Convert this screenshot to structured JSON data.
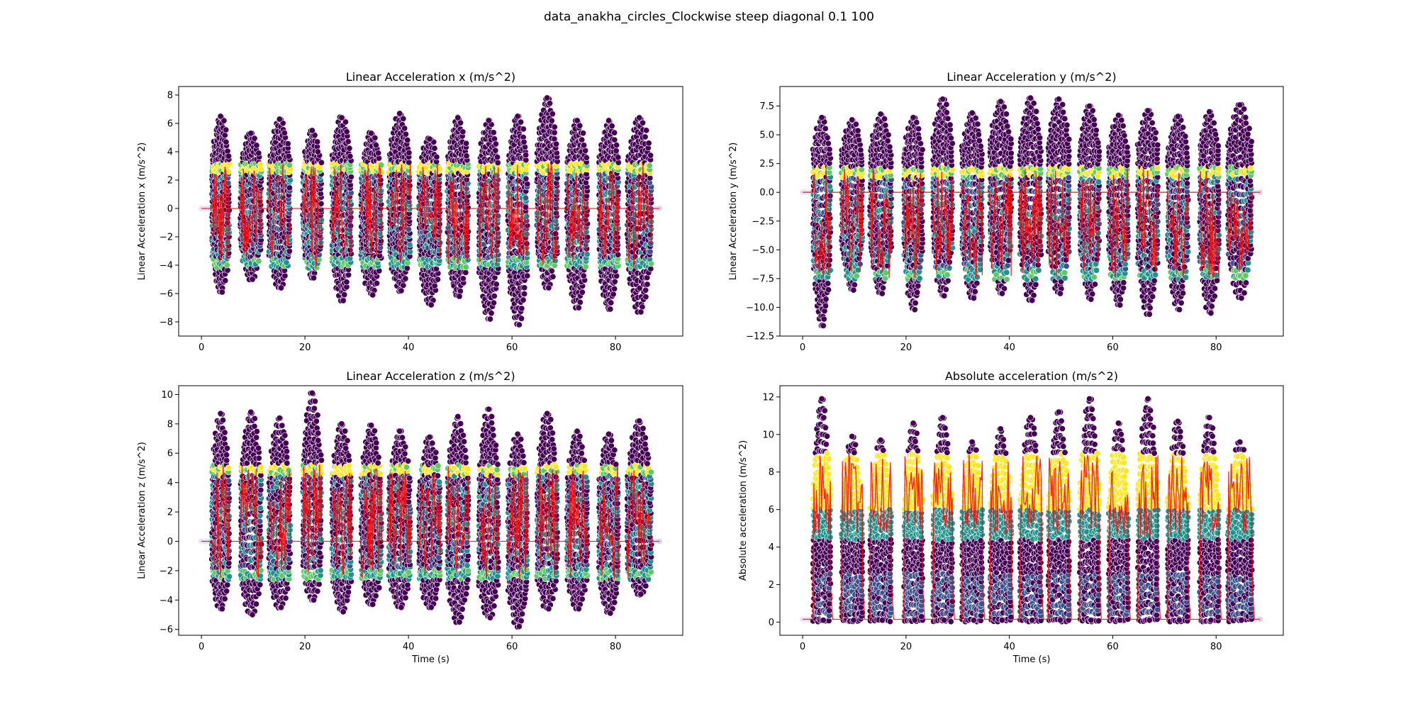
{
  "figure": {
    "title": "data_anakha_circles_Clockwise steep diagonal 0.1 100"
  },
  "colors": {
    "low": "#440154",
    "mid_low": "#3b528b",
    "mid": "#21918c",
    "mid_high": "#5ec962",
    "high": "#fde725",
    "line": "#ff0000",
    "point_edge": "#ffffff"
  },
  "chart_data": [
    {
      "type": "scatter",
      "title": "Linear Acceleration x (m/s^2)",
      "xlabel": "Time (s)",
      "ylabel": "Linear Acceleration x (m/s^2)",
      "xlim": [
        -4.4,
        93
      ],
      "ylim": [
        -9,
        8.6
      ],
      "xticks": [
        0,
        20,
        40,
        60,
        80
      ],
      "yticks": [
        -8,
        -6,
        -4,
        -2,
        0,
        2,
        4,
        6,
        8
      ],
      "ytick_labels": [
        "−8",
        "−6",
        "−4",
        "−2",
        "0",
        "2",
        "4",
        "6",
        "8"
      ],
      "bursts": [
        {
          "t": [
            2.0,
            5.4
          ],
          "min": -5.9,
          "max": 6.5
        },
        {
          "t": [
            7.5,
            11.6
          ],
          "min": -5.0,
          "max": 5.3
        },
        {
          "t": [
            13.0,
            17.2
          ],
          "min": -5.6,
          "max": 6.3
        },
        {
          "t": [
            19.6,
            23.2
          ],
          "min": -4.9,
          "max": 5.5
        },
        {
          "t": [
            25.2,
            29.0
          ],
          "min": -6.5,
          "max": 6.4
        },
        {
          "t": [
            30.8,
            34.8
          ],
          "min": -6.1,
          "max": 5.3
        },
        {
          "t": [
            36.2,
            40.4
          ],
          "min": -5.8,
          "max": 6.7
        },
        {
          "t": [
            42.0,
            46.2
          ],
          "min": -6.8,
          "max": 4.9
        },
        {
          "t": [
            47.5,
            51.6
          ],
          "min": -6.2,
          "max": 6.4
        },
        {
          "t": [
            53.6,
            57.4
          ],
          "min": -7.8,
          "max": 6.2
        },
        {
          "t": [
            59.2,
            63.0
          ],
          "min": -8.2,
          "max": 6.5
        },
        {
          "t": [
            64.8,
            68.8
          ],
          "min": -5.6,
          "max": 7.8
        },
        {
          "t": [
            70.6,
            74.6
          ],
          "min": -7.0,
          "max": 6.2
        },
        {
          "t": [
            76.8,
            80.6
          ],
          "min": -7.1,
          "max": 6.2
        },
        {
          "t": [
            82.2,
            87.0
          ],
          "min": -7.3,
          "max": 6.4
        }
      ],
      "band": {
        "lo": -4.2,
        "hi": 3.2
      },
      "baseline": 0.0,
      "t_start": 0.0,
      "t_end": 88.5
    },
    {
      "type": "scatter",
      "title": "Linear Acceleration y (m/s^2)",
      "xlabel": "Time (s)",
      "ylabel": "Linear Acceleration y (m/s^2)",
      "xlim": [
        -4.4,
        93
      ],
      "ylim": [
        -12.5,
        9.2
      ],
      "xticks": [
        0,
        20,
        40,
        60,
        80
      ],
      "yticks": [
        -12.5,
        -10.0,
        -7.5,
        -5.0,
        -2.5,
        0.0,
        2.5,
        5.0,
        7.5
      ],
      "ytick_labels": [
        "−12.5",
        "−10.0",
        "−7.5",
        "−5.0",
        "−2.5",
        "0.0",
        "2.5",
        "5.0",
        "7.5"
      ],
      "bursts": [
        {
          "t": [
            2.0,
            5.4
          ],
          "min": -11.6,
          "max": 6.5
        },
        {
          "t": [
            7.5,
            11.6
          ],
          "min": -8.5,
          "max": 6.3
        },
        {
          "t": [
            13.0,
            17.2
          ],
          "min": -8.8,
          "max": 6.8
        },
        {
          "t": [
            19.6,
            23.2
          ],
          "min": -10.2,
          "max": 6.5
        },
        {
          "t": [
            25.2,
            29.0
          ],
          "min": -9.0,
          "max": 8.1
        },
        {
          "t": [
            30.8,
            34.8
          ],
          "min": -9.2,
          "max": 6.9
        },
        {
          "t": [
            36.2,
            40.4
          ],
          "min": -8.8,
          "max": 7.9
        },
        {
          "t": [
            42.0,
            46.2
          ],
          "min": -9.4,
          "max": 8.2
        },
        {
          "t": [
            47.5,
            51.6
          ],
          "min": -8.8,
          "max": 8.1
        },
        {
          "t": [
            53.6,
            57.4
          ],
          "min": -9.3,
          "max": 7.5
        },
        {
          "t": [
            59.2,
            63.0
          ],
          "min": -9.8,
          "max": 6.7
        },
        {
          "t": [
            64.8,
            68.8
          ],
          "min": -10.6,
          "max": 7.1
        },
        {
          "t": [
            70.6,
            74.6
          ],
          "min": -10.2,
          "max": 6.6
        },
        {
          "t": [
            76.8,
            80.6
          ],
          "min": -10.5,
          "max": 7.0
        },
        {
          "t": [
            82.2,
            87.0
          ],
          "min": -9.2,
          "max": 7.6
        }
      ],
      "band": {
        "lo": -7.6,
        "hi": 2.2
      },
      "baseline": 0.0,
      "t_start": 0.0,
      "t_end": 88.5
    },
    {
      "type": "scatter",
      "title": "Linear Acceleration z (m/s^2)",
      "xlabel": "Time (s)",
      "ylabel": "Linear Acceleration z (m/s^2)",
      "xlim": [
        -4.4,
        93
      ],
      "ylim": [
        -6.4,
        10.6
      ],
      "xticks": [
        0,
        20,
        40,
        60,
        80
      ],
      "yticks": [
        -6,
        -4,
        -2,
        0,
        2,
        4,
        6,
        8,
        10
      ],
      "ytick_labels": [
        "−6",
        "−4",
        "−2",
        "0",
        "2",
        "4",
        "6",
        "8",
        "10"
      ],
      "bursts": [
        {
          "t": [
            2.0,
            5.4
          ],
          "min": -4.6,
          "max": 8.7
        },
        {
          "t": [
            7.5,
            11.6
          ],
          "min": -5.0,
          "max": 8.8
        },
        {
          "t": [
            13.0,
            17.2
          ],
          "min": -4.5,
          "max": 8.4
        },
        {
          "t": [
            19.6,
            23.2
          ],
          "min": -4.0,
          "max": 10.1
        },
        {
          "t": [
            25.2,
            29.0
          ],
          "min": -4.8,
          "max": 8.0
        },
        {
          "t": [
            30.8,
            34.8
          ],
          "min": -4.3,
          "max": 7.9
        },
        {
          "t": [
            36.2,
            40.4
          ],
          "min": -4.5,
          "max": 7.5
        },
        {
          "t": [
            42.0,
            46.2
          ],
          "min": -4.5,
          "max": 7.1
        },
        {
          "t": [
            47.5,
            51.6
          ],
          "min": -5.5,
          "max": 8.5
        },
        {
          "t": [
            53.6,
            57.4
          ],
          "min": -5.2,
          "max": 9.0
        },
        {
          "t": [
            59.2,
            63.0
          ],
          "min": -5.8,
          "max": 7.3
        },
        {
          "t": [
            64.8,
            68.8
          ],
          "min": -4.6,
          "max": 8.7
        },
        {
          "t": [
            70.6,
            74.6
          ],
          "min": -4.6,
          "max": 7.5
        },
        {
          "t": [
            76.8,
            80.6
          ],
          "min": -4.9,
          "max": 7.3
        },
        {
          "t": [
            82.2,
            87.0
          ],
          "min": -3.6,
          "max": 8.2
        }
      ],
      "band": {
        "lo": -2.6,
        "hi": 5.2
      },
      "baseline": 0.0,
      "t_start": 0.0,
      "t_end": 88.5
    },
    {
      "type": "scatter",
      "title": "Absolute acceleration (m/s^2)",
      "xlabel": "Time (s)",
      "ylabel": "Absolute acceleration (m/s^2)",
      "xlim": [
        -4.4,
        93
      ],
      "ylim": [
        -0.7,
        12.6
      ],
      "xticks": [
        0,
        20,
        40,
        60,
        80
      ],
      "yticks": [
        0,
        2,
        4,
        6,
        8,
        10,
        12
      ],
      "ytick_labels": [
        "0",
        "2",
        "4",
        "6",
        "8",
        "10",
        "12"
      ],
      "bursts": [
        {
          "t": [
            2.0,
            5.4
          ],
          "min": 0.1,
          "max": 11.9
        },
        {
          "t": [
            7.5,
            11.6
          ],
          "min": 0.1,
          "max": 9.9
        },
        {
          "t": [
            13.0,
            17.2
          ],
          "min": 0.1,
          "max": 9.7
        },
        {
          "t": [
            19.6,
            23.2
          ],
          "min": 0.1,
          "max": 10.6
        },
        {
          "t": [
            25.2,
            29.0
          ],
          "min": 0.1,
          "max": 10.9
        },
        {
          "t": [
            30.8,
            34.8
          ],
          "min": 0.1,
          "max": 9.6
        },
        {
          "t": [
            36.2,
            40.4
          ],
          "min": 0.1,
          "max": 10.3
        },
        {
          "t": [
            42.0,
            46.2
          ],
          "min": 0.1,
          "max": 10.9
        },
        {
          "t": [
            47.5,
            51.6
          ],
          "min": 0.1,
          "max": 11.2
        },
        {
          "t": [
            53.6,
            57.4
          ],
          "min": 0.1,
          "max": 11.9
        },
        {
          "t": [
            59.2,
            63.0
          ],
          "min": 0.1,
          "max": 10.6
        },
        {
          "t": [
            64.8,
            68.8
          ],
          "min": 0.1,
          "max": 11.9
        },
        {
          "t": [
            70.6,
            74.6
          ],
          "min": 0.1,
          "max": 10.7
        },
        {
          "t": [
            76.8,
            80.6
          ],
          "min": 0.1,
          "max": 10.9
        },
        {
          "t": [
            82.2,
            87.0
          ],
          "min": 0.1,
          "max": 9.6
        }
      ],
      "band": {
        "lo": 4.3,
        "hi": 9.2
      },
      "baseline": 0.15,
      "t_start": 0.0,
      "t_end": 88.5
    }
  ]
}
